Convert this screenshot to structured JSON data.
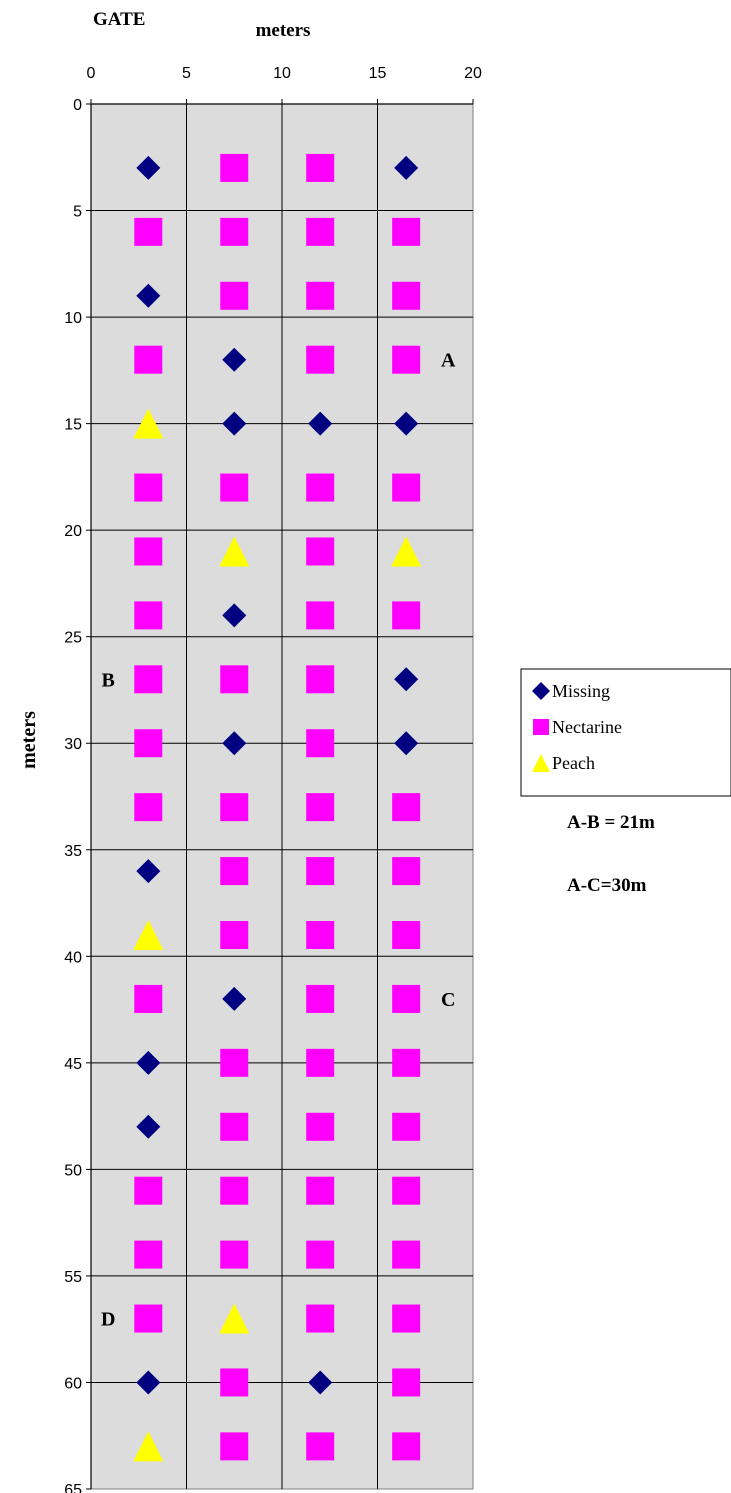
{
  "chart_data": {
    "type": "scatter",
    "title": "",
    "xlabel": "meters",
    "ylabel": "meters",
    "top_label": "GATE",
    "x_range": [
      0,
      20
    ],
    "y_range": [
      0,
      65
    ],
    "y_reversed": true,
    "x_ticks": [
      0,
      5,
      10,
      15,
      20
    ],
    "y_ticks": [
      0,
      5,
      10,
      15,
      20,
      25,
      30,
      35,
      40,
      45,
      50,
      55,
      60,
      65
    ],
    "grid": true,
    "legend_position": "right",
    "colors": {
      "Missing": "#000080",
      "Nectarine": "#ff00ff",
      "Peach": "#ffff00",
      "plot_bg": "#dcdcdc"
    },
    "series": [
      {
        "name": "Missing",
        "marker": "diamond",
        "points": [
          [
            3,
            3
          ],
          [
            16.5,
            3
          ],
          [
            3,
            9
          ],
          [
            7.5,
            12
          ],
          [
            7.5,
            15
          ],
          [
            12,
            15
          ],
          [
            16.5,
            15
          ],
          [
            7.5,
            24
          ],
          [
            16.5,
            27
          ],
          [
            7.5,
            30
          ],
          [
            16.5,
            30
          ],
          [
            3,
            36
          ],
          [
            7.5,
            42
          ],
          [
            3,
            45
          ],
          [
            3,
            48
          ],
          [
            3,
            60
          ],
          [
            12,
            60
          ]
        ]
      },
      {
        "name": "Nectarine",
        "marker": "square",
        "points": [
          [
            7.5,
            3
          ],
          [
            12,
            3
          ],
          [
            3,
            6
          ],
          [
            7.5,
            6
          ],
          [
            12,
            6
          ],
          [
            16.5,
            6
          ],
          [
            7.5,
            9
          ],
          [
            12,
            9
          ],
          [
            16.5,
            9
          ],
          [
            3,
            12
          ],
          [
            12,
            12
          ],
          [
            16.5,
            12
          ],
          [
            3,
            18
          ],
          [
            7.5,
            18
          ],
          [
            12,
            18
          ],
          [
            16.5,
            18
          ],
          [
            3,
            21
          ],
          [
            12,
            21
          ],
          [
            3,
            24
          ],
          [
            12,
            24
          ],
          [
            16.5,
            24
          ],
          [
            3,
            27
          ],
          [
            7.5,
            27
          ],
          [
            12,
            27
          ],
          [
            3,
            30
          ],
          [
            12,
            30
          ],
          [
            3,
            33
          ],
          [
            7.5,
            33
          ],
          [
            12,
            33
          ],
          [
            16.5,
            33
          ],
          [
            7.5,
            36
          ],
          [
            12,
            36
          ],
          [
            16.5,
            36
          ],
          [
            7.5,
            39
          ],
          [
            12,
            39
          ],
          [
            16.5,
            39
          ],
          [
            3,
            42
          ],
          [
            12,
            42
          ],
          [
            16.5,
            42
          ],
          [
            7.5,
            45
          ],
          [
            12,
            45
          ],
          [
            16.5,
            45
          ],
          [
            7.5,
            48
          ],
          [
            12,
            48
          ],
          [
            16.5,
            48
          ],
          [
            3,
            51
          ],
          [
            7.5,
            51
          ],
          [
            12,
            51
          ],
          [
            16.5,
            51
          ],
          [
            3,
            54
          ],
          [
            7.5,
            54
          ],
          [
            12,
            54
          ],
          [
            16.5,
            54
          ],
          [
            3,
            57
          ],
          [
            12,
            57
          ],
          [
            16.5,
            57
          ],
          [
            7.5,
            60
          ],
          [
            16.5,
            60
          ],
          [
            7.5,
            63
          ],
          [
            12,
            63
          ],
          [
            16.5,
            63
          ]
        ]
      },
      {
        "name": "Peach",
        "marker": "triangle",
        "points": [
          [
            3,
            15
          ],
          [
            7.5,
            21
          ],
          [
            16.5,
            21
          ],
          [
            3,
            39
          ],
          [
            7.5,
            57
          ],
          [
            3,
            63
          ]
        ]
      }
    ],
    "annotations": [
      {
        "text": "A",
        "x": 18.7,
        "y": 12
      },
      {
        "text": "B",
        "x": 0.9,
        "y": 27
      },
      {
        "text": "C",
        "x": 18.7,
        "y": 42
      },
      {
        "text": "D",
        "x": 0.9,
        "y": 57
      }
    ],
    "notes": [
      "A-B = 21m",
      "A-C=30m"
    ]
  }
}
